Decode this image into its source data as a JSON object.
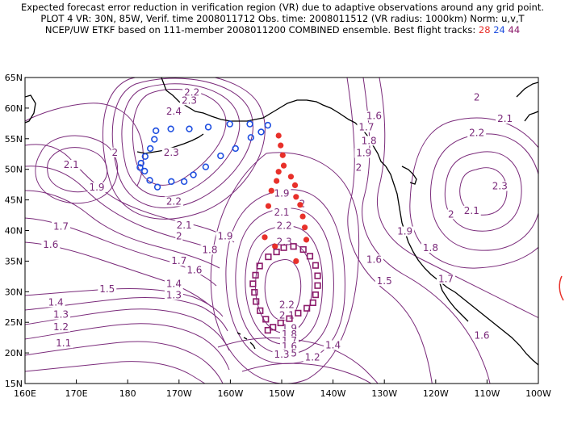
{
  "title": {
    "line1": "Expected forecast error reduction in verification region (VR) due to adaptive observations around any grid point.",
    "line2": "PLOT 4 VR: 30N, 85W, Verif. time 2008011712 Obs. time: 2008011512 (VR radius: 1000km) Norm: u,v,T",
    "line3_prefix": "NCEP/UW ETKF based on 111-member 2008011200 COMBINED ensemble.  Best flight tracks:",
    "track_red": "28",
    "track_blue": "24",
    "track_purple": "44"
  },
  "colors": {
    "contour": "#7a2a7a",
    "coast": "#000000",
    "track_red": "#e8302a",
    "track_blue": "#1f4fe0",
    "track_purple": "#8b1a6a"
  },
  "axes": {
    "x_ticks": [
      "160E",
      "170E",
      "180",
      "170W",
      "160W",
      "150W",
      "140W",
      "130W",
      "120W",
      "110W",
      "100W"
    ],
    "y_ticks": [
      "65N",
      "60N",
      "55N",
      "50N",
      "45N",
      "40N",
      "35N",
      "30N",
      "25N",
      "20N",
      "15N"
    ]
  },
  "contour_labels": [
    {
      "text": "2.2",
      "lon": -167.5,
      "lat": 62.3
    },
    {
      "text": "2.3",
      "lon": -168.0,
      "lat": 61.0
    },
    {
      "text": "2.4",
      "lon": -171.0,
      "lat": 59.2
    },
    {
      "text": "2.1",
      "lon": 169.0,
      "lat": 50.5
    },
    {
      "text": "2",
      "lon": 177.5,
      "lat": 52.5
    },
    {
      "text": "1.9",
      "lon": 174.0,
      "lat": 46.8
    },
    {
      "text": "2.3",
      "lon": -171.5,
      "lat": 52.5
    },
    {
      "text": "2.2",
      "lon": -171.0,
      "lat": 44.5
    },
    {
      "text": "2.1",
      "lon": -169.0,
      "lat": 40.6
    },
    {
      "text": "2",
      "lon": -170.0,
      "lat": 38.8
    },
    {
      "text": "1.9",
      "lon": -161.0,
      "lat": 38.8
    },
    {
      "text": "1.8",
      "lon": -164.0,
      "lat": 36.6
    },
    {
      "text": "1.7",
      "lon": -170.0,
      "lat": 34.8
    },
    {
      "text": "1.6",
      "lon": -167.0,
      "lat": 33.3
    },
    {
      "text": "1.7",
      "lon": 167.0,
      "lat": 40.4
    },
    {
      "text": "1.6",
      "lon": 165.0,
      "lat": 37.4
    },
    {
      "text": "1.5",
      "lon": 176.0,
      "lat": 30.2
    },
    {
      "text": "1.4",
      "lon": -171.0,
      "lat": 31.0
    },
    {
      "text": "1.3",
      "lon": -171.0,
      "lat": 29.2
    },
    {
      "text": "1.4",
      "lon": 166.0,
      "lat": 28.0
    },
    {
      "text": "1.3",
      "lon": 167.0,
      "lat": 26.0
    },
    {
      "text": "1.2",
      "lon": 167.0,
      "lat": 24.0
    },
    {
      "text": "1.1",
      "lon": 167.5,
      "lat": 21.3
    },
    {
      "text": "1.9",
      "lon": -150.0,
      "lat": 45.8
    },
    {
      "text": "2",
      "lon": -146.0,
      "lat": 44.1
    },
    {
      "text": "2.1",
      "lon": -150.0,
      "lat": 42.7
    },
    {
      "text": "2.2",
      "lon": -149.5,
      "lat": 40.5
    },
    {
      "text": "2.3",
      "lon": -149.5,
      "lat": 37.9
    },
    {
      "text": "2.2",
      "lon": -149.0,
      "lat": 27.6
    },
    {
      "text": "2.1",
      "lon": -149.0,
      "lat": 25.9
    },
    {
      "text": "1.9",
      "lon": -148.5,
      "lat": 23.8
    },
    {
      "text": "1.8",
      "lon": -148.5,
      "lat": 22.8
    },
    {
      "text": "1.7",
      "lon": -148.5,
      "lat": 21.7
    },
    {
      "text": "1.6",
      "lon": -148.5,
      "lat": 20.8
    },
    {
      "text": "1.5",
      "lon": -148.5,
      "lat": 19.7
    },
    {
      "text": "1.3",
      "lon": -150.0,
      "lat": 19.5
    },
    {
      "text": "1.4",
      "lon": -140.0,
      "lat": 21.0
    },
    {
      "text": "1.2",
      "lon": -144.0,
      "lat": 19.0
    },
    {
      "text": "1.6",
      "lon": -132.0,
      "lat": 58.5
    },
    {
      "text": "1.7",
      "lon": -133.5,
      "lat": 56.6
    },
    {
      "text": "1.8",
      "lon": -133.0,
      "lat": 54.4
    },
    {
      "text": "1.9",
      "lon": -134.0,
      "lat": 52.4
    },
    {
      "text": "2",
      "lon": -135.0,
      "lat": 50.0
    },
    {
      "text": "2",
      "lon": -112.0,
      "lat": 61.5
    },
    {
      "text": "2.1",
      "lon": -106.5,
      "lat": 58.0
    },
    {
      "text": "2.2",
      "lon": -112.0,
      "lat": 55.7
    },
    {
      "text": "2.3",
      "lon": -107.5,
      "lat": 47.0
    },
    {
      "text": "2.1",
      "lon": -113.0,
      "lat": 43.0
    },
    {
      "text": "2",
      "lon": -117.0,
      "lat": 42.4
    },
    {
      "text": "1.9",
      "lon": -126.0,
      "lat": 39.6
    },
    {
      "text": "1.8",
      "lon": -121.0,
      "lat": 36.9
    },
    {
      "text": "1.7",
      "lon": -118.0,
      "lat": 31.8
    },
    {
      "text": "1.6",
      "lon": -132.0,
      "lat": 35.0
    },
    {
      "text": "1.5",
      "lon": -130.0,
      "lat": 31.5
    },
    {
      "text": "1.6",
      "lon": -111.0,
      "lat": 22.6
    }
  ],
  "tracks": {
    "red_dots": [
      [
        -150.6,
        55.5
      ],
      [
        -150.2,
        53.9
      ],
      [
        -149.8,
        52.3
      ],
      [
        -149.6,
        50.6
      ],
      [
        -150.6,
        49.6
      ],
      [
        -151.0,
        48.1
      ],
      [
        -148.2,
        48.8
      ],
      [
        -147.4,
        47.4
      ],
      [
        -152.0,
        46.5
      ],
      [
        -147.2,
        45.5
      ],
      [
        -146.4,
        44.2
      ],
      [
        -152.6,
        44.0
      ],
      [
        -145.9,
        42.3
      ],
      [
        -145.5,
        40.5
      ],
      [
        -153.3,
        38.9
      ],
      [
        -145.2,
        38.5
      ],
      [
        -151.3,
        37.4
      ],
      [
        -147.2,
        35.0
      ]
    ],
    "blue_circles": [
      [
        -171.6,
        56.6
      ],
      [
        -168.0,
        56.6
      ],
      [
        -164.3,
        56.9
      ],
      [
        -160.1,
        57.4
      ],
      [
        -156.2,
        57.4
      ],
      [
        -152.7,
        57.2
      ],
      [
        -154.0,
        56.1
      ],
      [
        -156.0,
        55.2
      ],
      [
        -159.0,
        53.4
      ],
      [
        -161.9,
        52.2
      ],
      [
        -164.8,
        50.4
      ],
      [
        -167.2,
        49.1
      ],
      [
        -169.0,
        48.0
      ],
      [
        -171.5,
        48.0
      ],
      [
        -174.2,
        47.1
      ],
      [
        -175.7,
        48.2
      ],
      [
        -176.7,
        49.7
      ],
      [
        -177.4,
        51.0
      ],
      [
        -176.6,
        52.1
      ],
      [
        -175.6,
        53.4
      ],
      [
        -174.8,
        54.9
      ],
      [
        -174.5,
        56.3
      ],
      [
        -177.6,
        50.3
      ]
    ],
    "purple_squares": [
      [
        -149.6,
        37.2
      ],
      [
        -147.7,
        37.4
      ],
      [
        -145.8,
        36.9
      ],
      [
        -144.5,
        35.8
      ],
      [
        -143.4,
        34.3
      ],
      [
        -143.0,
        32.6
      ],
      [
        -143.0,
        31.0
      ],
      [
        -143.4,
        29.5
      ],
      [
        -143.9,
        28.2
      ],
      [
        -145.1,
        27.3
      ],
      [
        -146.8,
        26.5
      ],
      [
        -148.5,
        25.6
      ],
      [
        -150.2,
        24.9
      ],
      [
        -151.7,
        24.2
      ],
      [
        -152.7,
        23.7
      ],
      [
        -153.1,
        25.5
      ],
      [
        -154.2,
        26.9
      ],
      [
        -155.0,
        28.4
      ],
      [
        -155.3,
        29.9
      ],
      [
        -155.6,
        31.3
      ],
      [
        -155.1,
        32.7
      ],
      [
        -154.3,
        34.2
      ],
      [
        -152.6,
        35.7
      ],
      [
        -151.0,
        36.5
      ]
    ]
  }
}
